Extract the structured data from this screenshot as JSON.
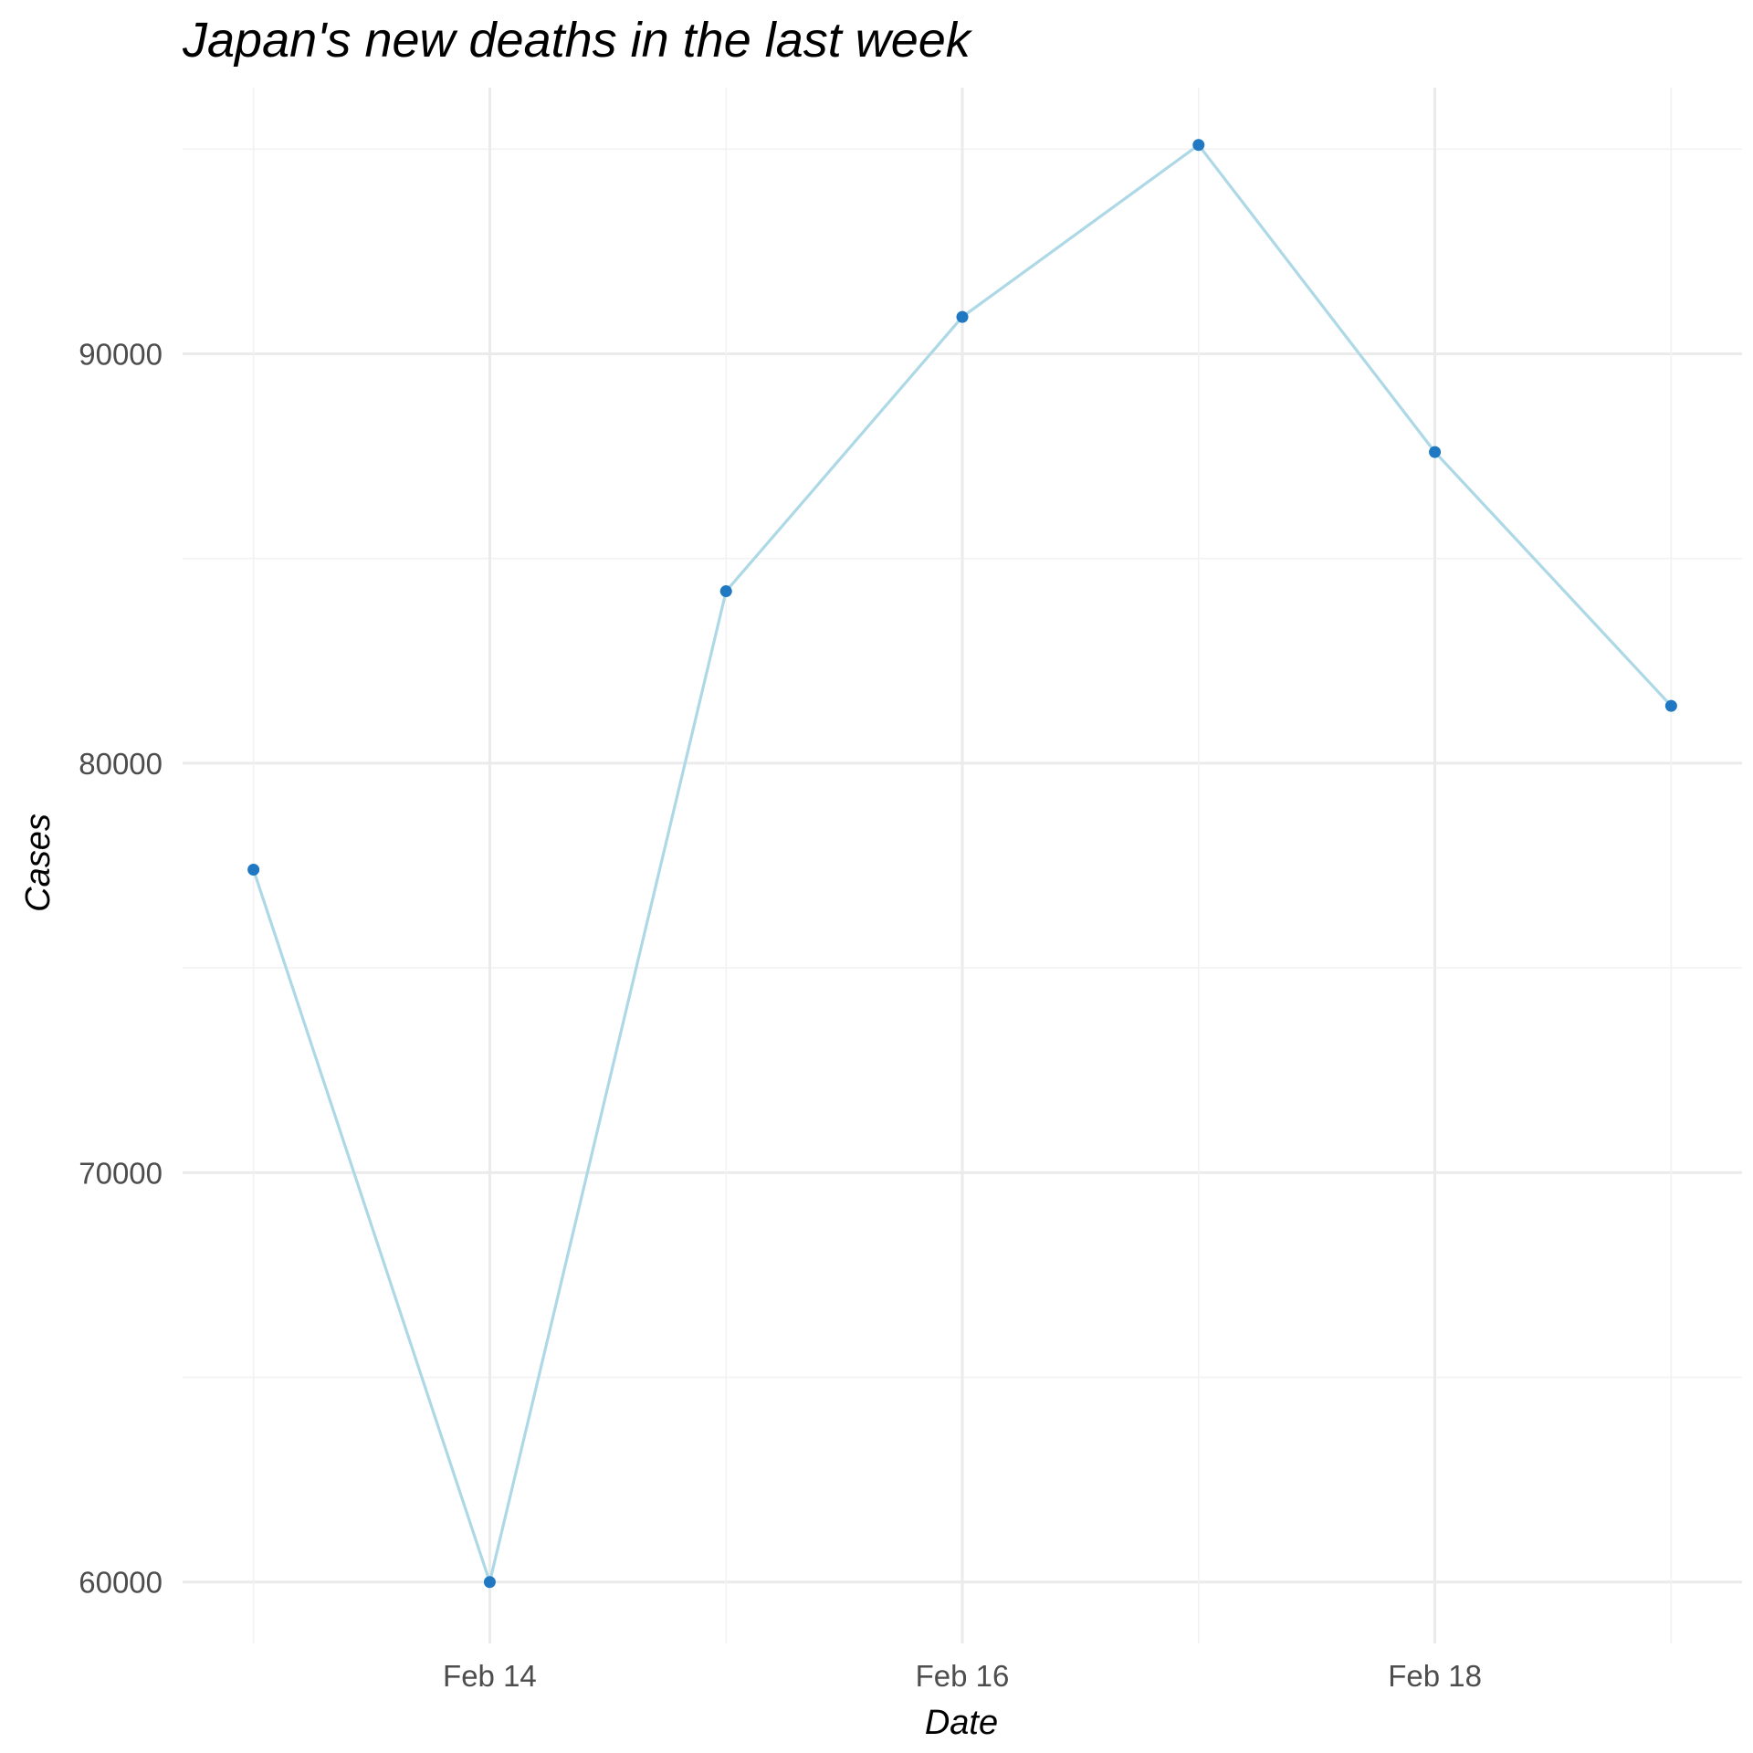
{
  "chart_data": {
    "type": "line",
    "title": "Japan's new deaths in the last week",
    "xlabel": "Date",
    "ylabel": "Cases",
    "x": [
      "Feb 13",
      "Feb 14",
      "Feb 15",
      "Feb 16",
      "Feb 17",
      "Feb 18",
      "Feb 19"
    ],
    "x_ticks": [
      "Feb 14",
      "Feb 16",
      "Feb 18"
    ],
    "y_ticks": [
      "60000",
      "70000",
      "80000",
      "90000"
    ],
    "series": [
      {
        "values": [
          77400,
          60000,
          84200,
          90900,
          95100,
          87600,
          81400
        ]
      }
    ],
    "ylim": [
      58500,
      96500
    ],
    "grid": true,
    "colors": {
      "line": "#add8e6",
      "point": "#1f78c1"
    }
  }
}
